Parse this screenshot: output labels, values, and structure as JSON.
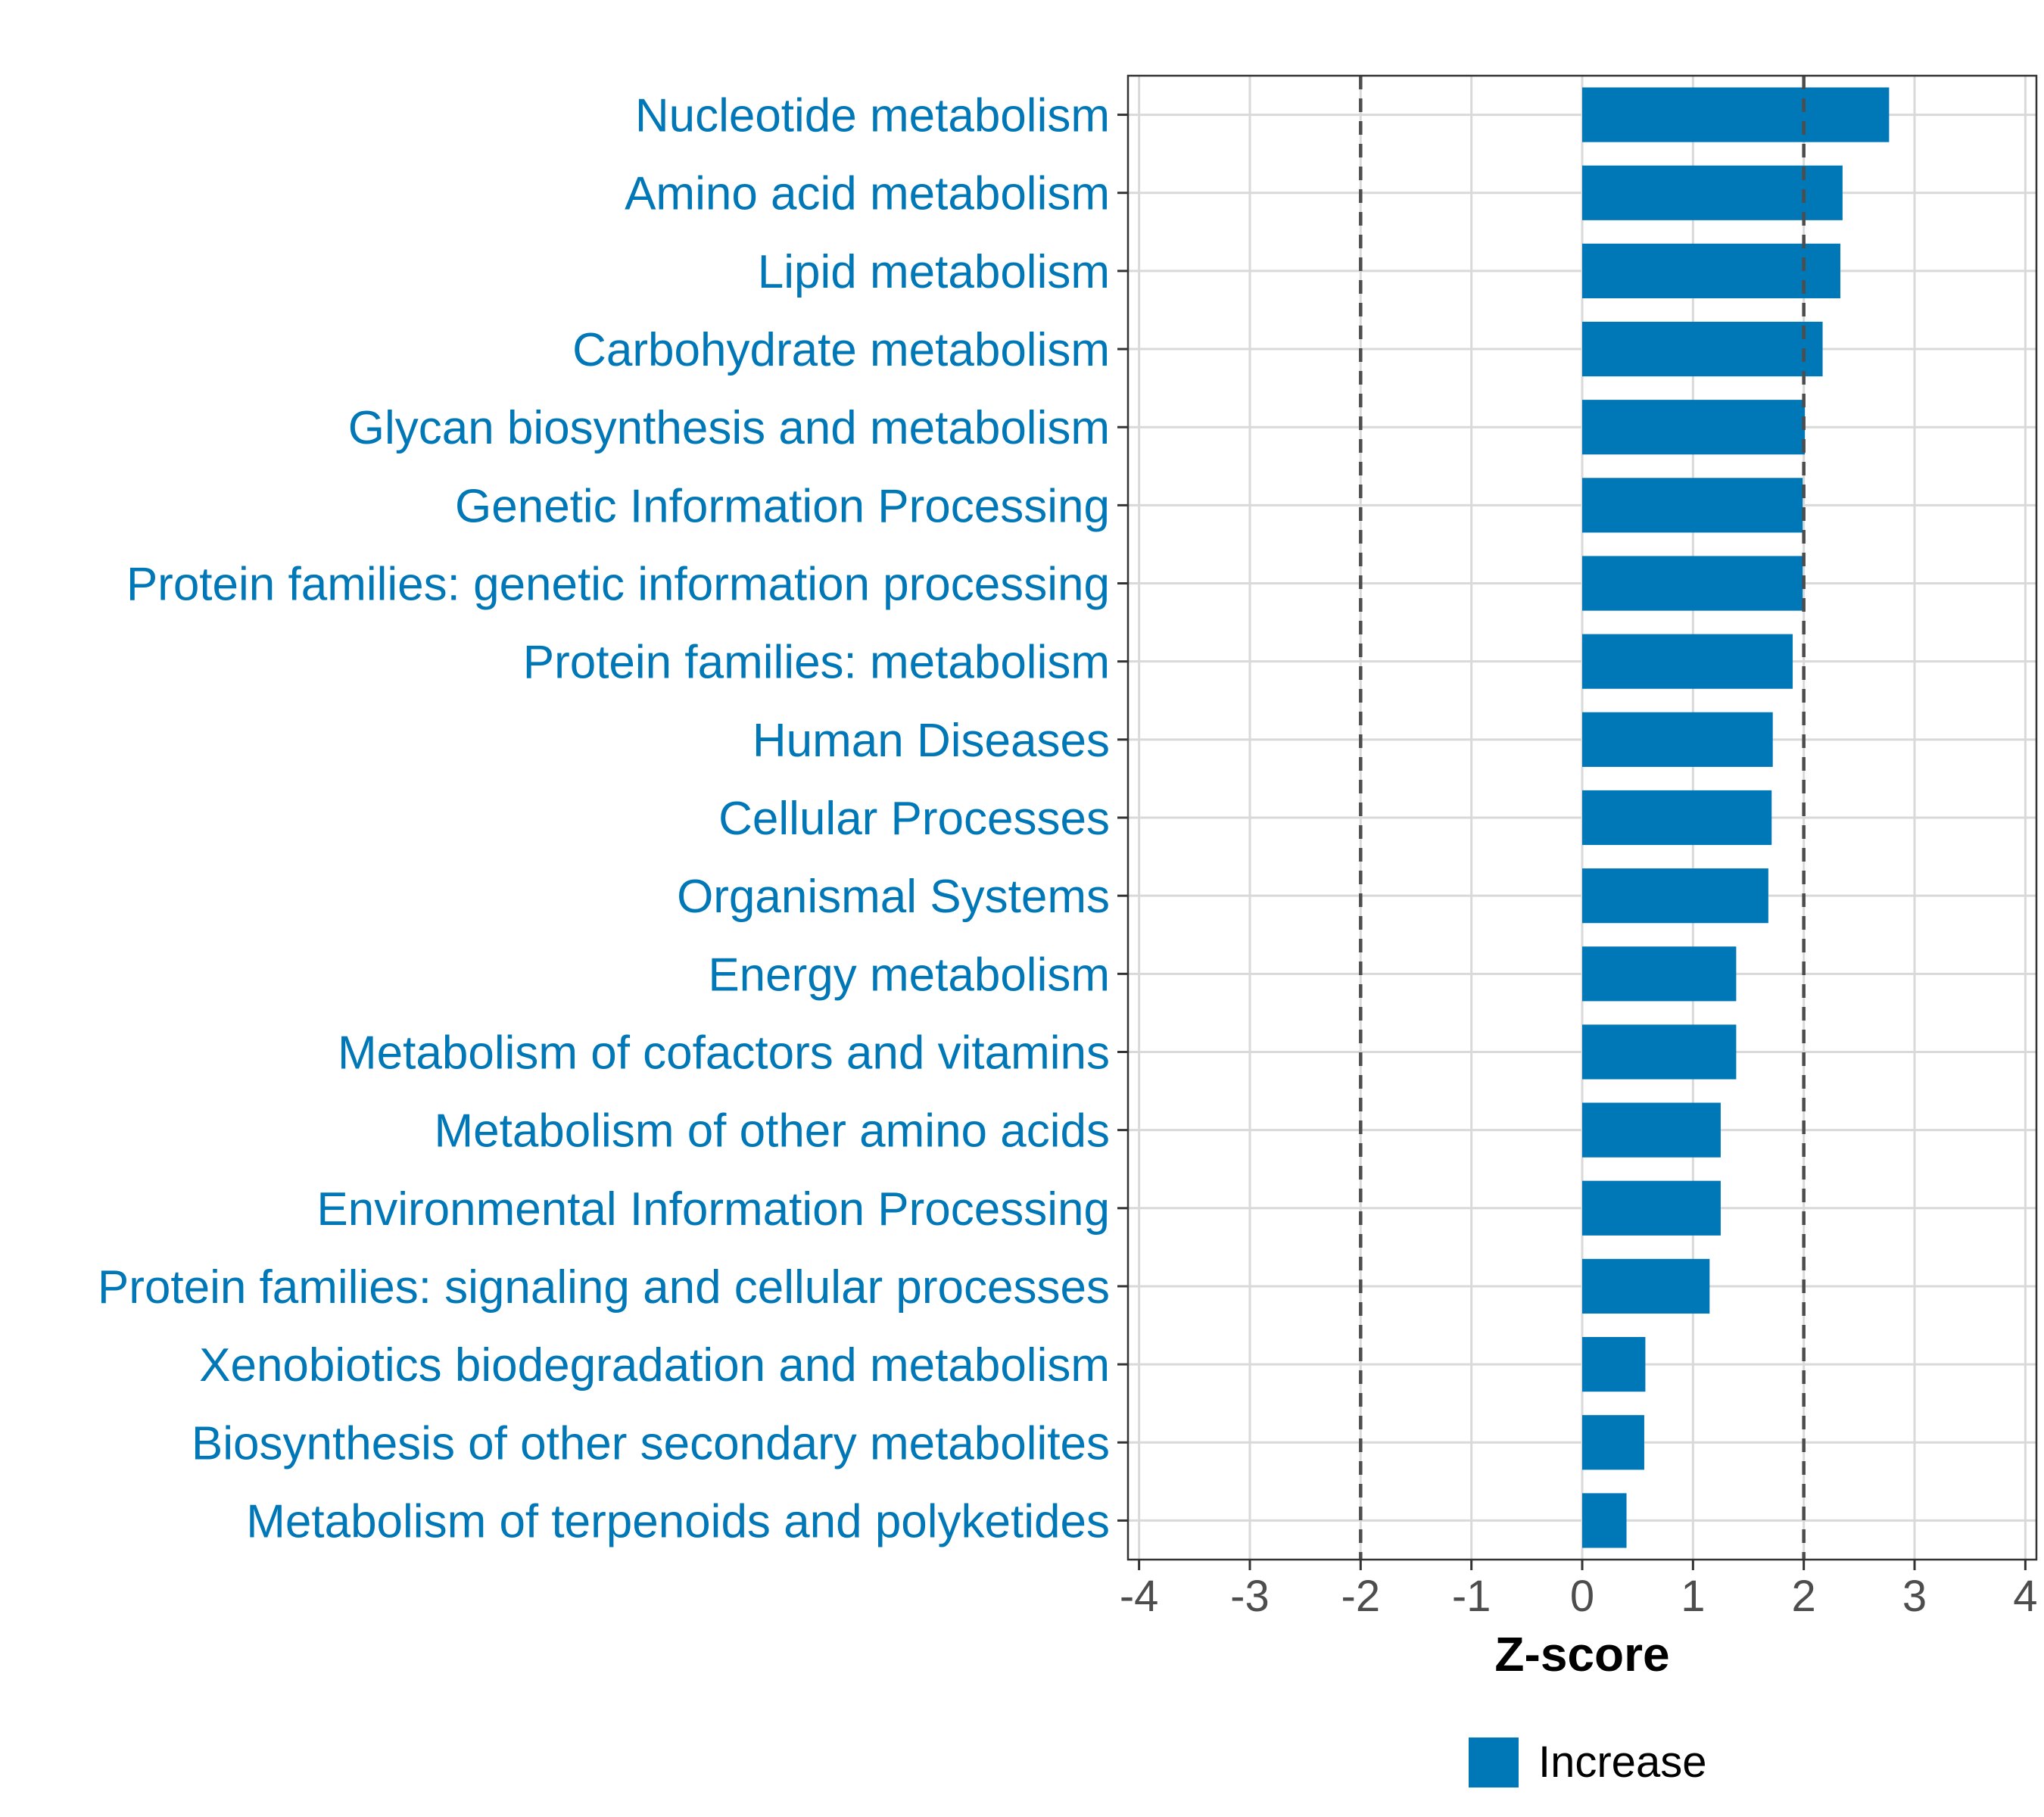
{
  "chart_data": {
    "type": "bar",
    "orientation": "horizontal",
    "categories": [
      "Nucleotide metabolism",
      "Amino acid metabolism",
      "Lipid metabolism",
      "Carbohydrate metabolism",
      "Glycan biosynthesis and metabolism",
      "Genetic Information Processing",
      "Protein families: genetic information processing",
      "Protein families: metabolism",
      "Human Diseases",
      "Cellular Processes",
      "Organismal Systems",
      "Energy metabolism",
      "Metabolism of cofactors and vitamins",
      "Metabolism of other amino acids",
      "Environmental Information Processing",
      "Protein families: signaling and cellular processes",
      "Xenobiotics biodegradation and metabolism",
      "Biosynthesis of other secondary metabolites",
      "Metabolism of terpenoids and polyketides"
    ],
    "values": [
      2.77,
      2.35,
      2.33,
      2.17,
      2.01,
      1.99,
      1.99,
      1.9,
      1.72,
      1.71,
      1.68,
      1.39,
      1.39,
      1.25,
      1.25,
      1.15,
      0.57,
      0.56,
      0.4
    ],
    "xlabel": "Z-score",
    "ylabel": "",
    "xlim": [
      -4.1,
      4.1
    ],
    "x_ticks": [
      -4,
      -3,
      -2,
      -1,
      0,
      1,
      2,
      3,
      4
    ],
    "x_tick_labels": [
      "-4",
      "-3",
      "-2",
      "-1",
      "0",
      "1",
      "2",
      "3",
      "4"
    ],
    "threshold_lines": [
      -2,
      2
    ],
    "grid": true,
    "legend": {
      "position": "bottom",
      "entries": [
        {
          "label": "Increase",
          "color": "#0077B6"
        }
      ]
    },
    "colors": {
      "bar": "#0077B6",
      "category_label": "#0077B6",
      "tick_label": "#4D4D4D",
      "grid": "#D9D9D9",
      "threshold": "#4D4D4D",
      "axis_title": "#000000"
    }
  }
}
